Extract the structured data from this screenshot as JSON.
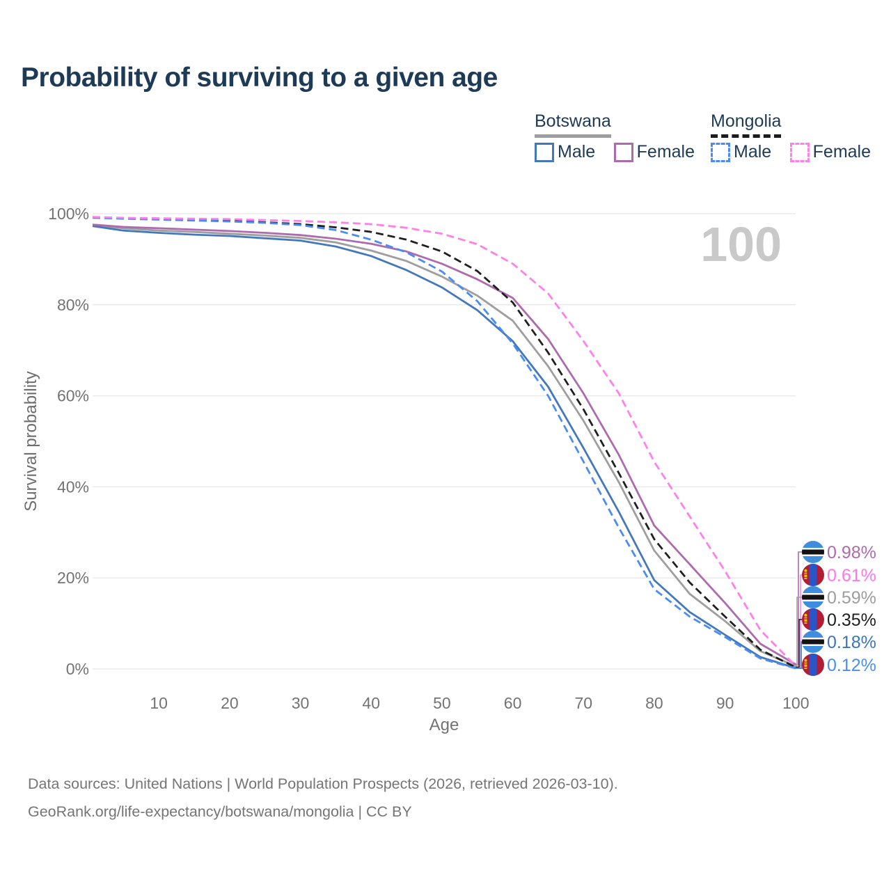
{
  "title": "Probability of surviving to a given age",
  "watermark_age": "100",
  "legend": {
    "groups": [
      {
        "label": "Botswana",
        "style": "solid",
        "underline_color": "#9e9e9e",
        "items": [
          {
            "label": "Male",
            "color": "#4478bd",
            "dashed": false
          },
          {
            "label": "Female",
            "color": "#ad6bad",
            "dashed": false
          }
        ]
      },
      {
        "label": "Mongolia",
        "style": "dashed",
        "underline_color": "#1c1c1c",
        "items": [
          {
            "label": "Male",
            "color": "#4b8bf5",
            "dashed": true
          },
          {
            "label": "Female",
            "color": "#ff80ea",
            "dashed": true
          }
        ]
      }
    ]
  },
  "chart_data": {
    "type": "line",
    "title": "Probability of surviving to a given age",
    "xlabel": "Age",
    "ylabel": "Survival probability",
    "xlim": [
      0,
      100
    ],
    "ylim": [
      0,
      100
    ],
    "grid": true,
    "legend_position": "top-right",
    "unit": "percent",
    "x": [
      0,
      5,
      10,
      15,
      20,
      25,
      30,
      35,
      40,
      45,
      50,
      55,
      60,
      65,
      70,
      75,
      80,
      85,
      90,
      95,
      100
    ],
    "x_ticks": [
      10,
      20,
      30,
      40,
      50,
      60,
      70,
      80,
      90,
      100
    ],
    "y_ticks": [
      {
        "label": "100%",
        "value": 100
      },
      {
        "label": "80%",
        "value": 80
      },
      {
        "label": "60%",
        "value": 60
      },
      {
        "label": "40%",
        "value": 40
      },
      {
        "label": "20%",
        "value": 20
      },
      {
        "label": "0%",
        "value": 0
      }
    ],
    "series": [
      {
        "id": "botswana_total",
        "name": "Botswana",
        "country": "Botswana",
        "sex": "Both",
        "style": "solid",
        "color": "#9e9e9e",
        "values": [
          97.5,
          96.8,
          96.3,
          96.0,
          95.6,
          95.2,
          94.7,
          93.7,
          91.9,
          89.6,
          86.2,
          82.0,
          76.5,
          66.5,
          54.5,
          41.0,
          26.0,
          16.5,
          10.5,
          3.9,
          0.59
        ],
        "end_label": {
          "text": "0.59%",
          "color": "#9d9d9d",
          "flag": "botswana",
          "row": 2
        }
      },
      {
        "id": "botswana_male",
        "name": "Botswana Male",
        "country": "Botswana",
        "sex": "Male",
        "style": "solid",
        "color": "#4478bd",
        "values": [
          97.3,
          96.3,
          95.8,
          95.4,
          95.1,
          94.6,
          94.1,
          92.8,
          90.7,
          87.6,
          83.8,
          78.8,
          72.0,
          62.0,
          48.5,
          34.5,
          19.5,
          12.5,
          7.5,
          2.6,
          0.18
        ],
        "end_label": {
          "text": "0.18%",
          "color": "#3d74b9",
          "flag": "botswana",
          "row": 4
        }
      },
      {
        "id": "botswana_female",
        "name": "Botswana Female",
        "country": "Botswana",
        "sex": "Female",
        "style": "solid",
        "color": "#ad6bad",
        "values": [
          97.6,
          97.1,
          96.8,
          96.5,
          96.2,
          95.8,
          95.3,
          94.5,
          93.4,
          91.7,
          89.0,
          85.6,
          81.5,
          72.5,
          60.5,
          47.0,
          31.5,
          23.0,
          14.5,
          5.5,
          0.98
        ],
        "end_label": {
          "text": "0.98%",
          "color": "#ad6bad",
          "flag": "botswana",
          "row": 0
        }
      },
      {
        "id": "mongolia_total",
        "name": "Mongolia",
        "country": "Mongolia",
        "sex": "Both",
        "style": "dashed",
        "color": "#1f1f1f",
        "values": [
          99.2,
          99.0,
          98.8,
          98.6,
          98.4,
          98.1,
          97.7,
          97.0,
          96.0,
          94.3,
          91.7,
          87.4,
          80.5,
          69.5,
          57.0,
          43.0,
          28.5,
          19.0,
          11.5,
          4.2,
          0.35
        ],
        "end_label": {
          "text": "0.35%",
          "color": "#1f1f1f",
          "flag": "mongolia",
          "row": 3
        }
      },
      {
        "id": "mongolia_male",
        "name": "Mongolia Male",
        "country": "Mongolia",
        "sex": "Male",
        "style": "dashed",
        "color": "#4b8bf5",
        "values": [
          99.1,
          98.9,
          98.7,
          98.5,
          98.3,
          98.0,
          97.5,
          96.4,
          94.3,
          91.5,
          87.3,
          80.8,
          71.5,
          60.0,
          45.5,
          31.0,
          17.5,
          11.5,
          7.0,
          2.3,
          0.12
        ],
        "end_label": {
          "text": "0.12%",
          "color": "#4a8ff0",
          "flag": "mongolia",
          "row": 5
        }
      },
      {
        "id": "mongolia_female",
        "name": "Mongolia Female",
        "country": "Mongolia",
        "sex": "Female",
        "style": "dashed",
        "color": "#ff80ea",
        "values": [
          99.3,
          99.1,
          99.0,
          98.9,
          98.8,
          98.6,
          98.4,
          98.1,
          97.7,
          96.9,
          95.6,
          93.3,
          89.0,
          82.5,
          72.0,
          60.5,
          45.5,
          33.5,
          21.5,
          8.5,
          0.61
        ],
        "end_label": {
          "text": "0.61%",
          "color": "#ff77e8",
          "flag": "mongolia",
          "row": 1
        }
      }
    ]
  },
  "footer": {
    "line1": "Data sources: United Nations | World Population Prospects (2026, retrieved 2026-03-10).",
    "line2": "GeoRank.org/life-expectancy/botswana/mongolia | CC BY"
  }
}
